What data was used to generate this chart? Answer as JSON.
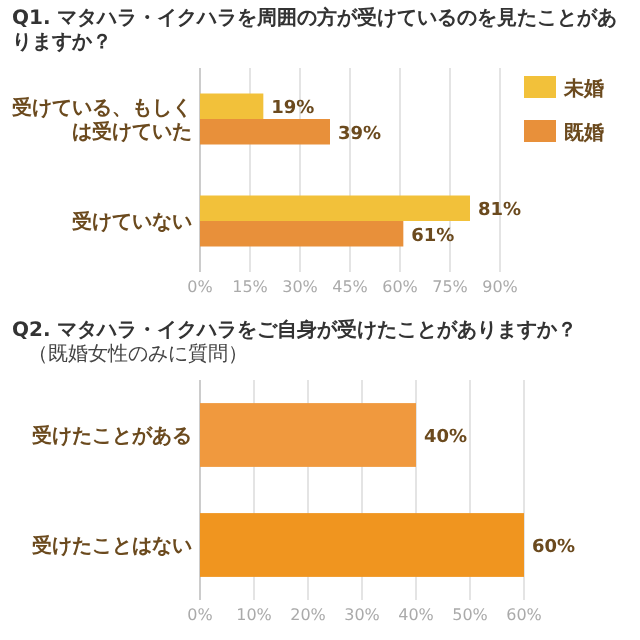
{
  "chart_data": [
    {
      "type": "bar",
      "orientation": "horizontal",
      "title": "Q1. マタハラ・イクハラを周囲の方が受けているのを見たことがありますか？",
      "categories": [
        "受けている、もしくは受けていた",
        "受けていない"
      ],
      "series": [
        {
          "name": "未婚",
          "color": "#f2c13a",
          "values": [
            19,
            81
          ]
        },
        {
          "name": "既婚",
          "color": "#e8903a",
          "values": [
            39,
            61
          ]
        }
      ],
      "xlim": [
        0,
        90
      ],
      "xticks": [
        {
          "value": 0,
          "label": "0%"
        },
        {
          "value": 15,
          "label": "15%"
        },
        {
          "value": 30,
          "label": "30%"
        },
        {
          "value": 45,
          "label": "45%"
        },
        {
          "value": 60,
          "label": "60%"
        },
        {
          "value": 75,
          "label": "75%"
        },
        {
          "value": 90,
          "label": "90%"
        }
      ],
      "value_labels": [
        [
          "19%",
          "81%"
        ],
        [
          "39%",
          "61%"
        ]
      ],
      "grid": "x",
      "legend": "right"
    },
    {
      "type": "bar",
      "orientation": "horizontal",
      "title": "Q2. マタハラ・イクハラをご自身が受けたことがありますか？",
      "subtitle": "（既婚女性のみに質問）",
      "categories": [
        "受けたことがある",
        "受けたことはない"
      ],
      "values": [
        40,
        60
      ],
      "colors": [
        "#f0993e",
        "#f0951f"
      ],
      "xlim": [
        0,
        60
      ],
      "xticks": [
        {
          "value": 0,
          "label": "0%"
        },
        {
          "value": 10,
          "label": "10%"
        },
        {
          "value": 20,
          "label": "20%"
        },
        {
          "value": 30,
          "label": "30%"
        },
        {
          "value": 40,
          "label": "40%"
        },
        {
          "value": 50,
          "label": "50%"
        },
        {
          "value": 60,
          "label": "60%"
        }
      ],
      "value_labels": [
        "40%",
        "60%"
      ],
      "grid": "x"
    }
  ]
}
